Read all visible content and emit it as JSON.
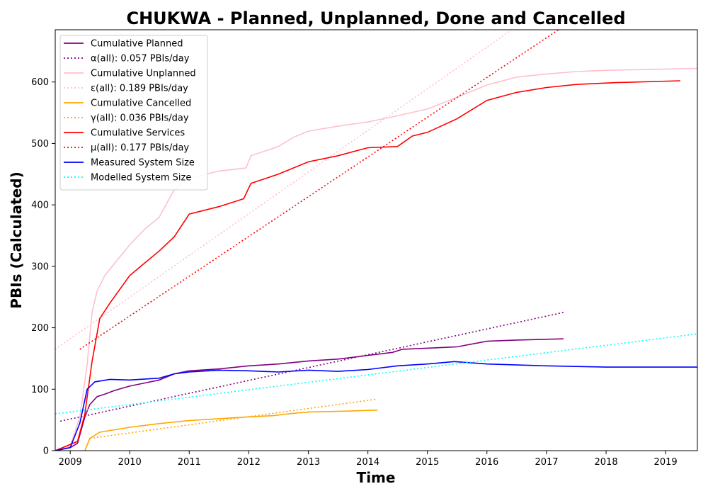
{
  "chart_data": {
    "type": "line",
    "title": "CHUKWA - Planned, Unplanned, Done  and Cancelled",
    "xlabel": "Time",
    "ylabel": "PBIs (Calculated)",
    "xlim": [
      "2008-10-01",
      "2019-07-15"
    ],
    "ylim": [
      0,
      685
    ],
    "x_ticks": [
      "2009",
      "2010",
      "2011",
      "2012",
      "2013",
      "2014",
      "2015",
      "2016",
      "2017",
      "2018",
      "2019"
    ],
    "y_ticks": [
      0,
      100,
      200,
      300,
      400,
      500,
      600
    ],
    "legend_position": "upper-left",
    "grid": false,
    "series": [
      {
        "name": "Cumulative Planned",
        "color": "#800080",
        "style": "solid",
        "points": [
          [
            "2008-10-01",
            0
          ],
          [
            "2009-01-01",
            5
          ],
          [
            "2009-02-15",
            12
          ],
          [
            "2009-04-01",
            55
          ],
          [
            "2009-05-01",
            75
          ],
          [
            "2009-06-15",
            88
          ],
          [
            "2009-08-01",
            92
          ],
          [
            "2009-10-01",
            98
          ],
          [
            "2010-01-01",
            105
          ],
          [
            "2010-04-01",
            110
          ],
          [
            "2010-07-01",
            115
          ],
          [
            "2010-10-01",
            125
          ],
          [
            "2011-01-01",
            130
          ],
          [
            "2011-07-01",
            133
          ],
          [
            "2012-01-01",
            138
          ],
          [
            "2012-07-01",
            141
          ],
          [
            "2013-01-01",
            146
          ],
          [
            "2013-07-01",
            149
          ],
          [
            "2014-01-01",
            155
          ],
          [
            "2014-06-01",
            160
          ],
          [
            "2014-08-01",
            165
          ],
          [
            "2015-07-01",
            169
          ],
          [
            "2016-01-01",
            178
          ],
          [
            "2016-07-01",
            180
          ],
          [
            "2017-04-15",
            182
          ]
        ]
      },
      {
        "name": "α(all): 0.057 PBIs/day",
        "color": "#800080",
        "style": "dotted",
        "points": [
          [
            "2008-11-01",
            48
          ],
          [
            "2017-04-15",
            225
          ]
        ]
      },
      {
        "name": "Cumulative Unplanned",
        "color": "#ffc0cb",
        "style": "solid",
        "points": [
          [
            "2008-10-01",
            0
          ],
          [
            "2009-01-01",
            8
          ],
          [
            "2009-03-01",
            55
          ],
          [
            "2009-04-15",
            140
          ],
          [
            "2009-05-15",
            225
          ],
          [
            "2009-06-15",
            260
          ],
          [
            "2009-08-01",
            285
          ],
          [
            "2009-10-01",
            305
          ],
          [
            "2010-01-01",
            335
          ],
          [
            "2010-04-01",
            360
          ],
          [
            "2010-07-01",
            380
          ],
          [
            "2010-10-01",
            425
          ],
          [
            "2011-01-01",
            443
          ],
          [
            "2011-07-01",
            455
          ],
          [
            "2011-12-15",
            460
          ],
          [
            "2012-01-15",
            480
          ],
          [
            "2012-07-01",
            495
          ],
          [
            "2012-10-01",
            510
          ],
          [
            "2013-01-01",
            520
          ],
          [
            "2013-07-01",
            528
          ],
          [
            "2014-01-01",
            535
          ],
          [
            "2014-07-01",
            545
          ],
          [
            "2015-01-01",
            556
          ],
          [
            "2015-07-01",
            575
          ],
          [
            "2016-01-01",
            595
          ],
          [
            "2016-07-01",
            608
          ],
          [
            "2017-01-01",
            613
          ],
          [
            "2017-07-01",
            617
          ],
          [
            "2018-01-01",
            619
          ],
          [
            "2019-07-15",
            622
          ]
        ]
      },
      {
        "name": "ε(all): 0.189 PBIs/day",
        "color": "#ffc0cb",
        "style": "dotted",
        "points": [
          [
            "2008-10-01",
            165
          ],
          [
            "2016-06-01",
            685
          ]
        ]
      },
      {
        "name": "Cumulative Cancelled",
        "color": "#ffa500",
        "style": "solid",
        "points": [
          [
            "2009-04-01",
            0
          ],
          [
            "2009-05-01",
            20
          ],
          [
            "2009-07-01",
            30
          ],
          [
            "2010-01-01",
            38
          ],
          [
            "2010-07-01",
            44
          ],
          [
            "2011-01-01",
            49
          ],
          [
            "2011-07-01",
            52
          ],
          [
            "2012-01-01",
            55
          ],
          [
            "2012-06-01",
            57
          ],
          [
            "2012-09-01",
            60
          ],
          [
            "2013-01-01",
            63
          ],
          [
            "2013-07-01",
            64
          ],
          [
            "2014-03-01",
            66
          ]
        ]
      },
      {
        "name": "γ(all): 0.036 PBIs/day",
        "color": "#ffa500",
        "style": "dotted",
        "points": [
          [
            "2009-05-01",
            20
          ],
          [
            "2014-03-01",
            84
          ]
        ]
      },
      {
        "name": "Cumulative Services",
        "color": "#ff0000",
        "style": "solid",
        "points": [
          [
            "2008-10-01",
            0
          ],
          [
            "2009-02-15",
            15
          ],
          [
            "2009-04-01",
            60
          ],
          [
            "2009-05-15",
            145
          ],
          [
            "2009-07-01",
            215
          ],
          [
            "2009-09-01",
            240
          ],
          [
            "2010-01-01",
            285
          ],
          [
            "2010-04-01",
            305
          ],
          [
            "2010-07-01",
            325
          ],
          [
            "2010-10-01",
            348
          ],
          [
            "2011-01-01",
            385
          ],
          [
            "2011-07-01",
            397
          ],
          [
            "2011-12-01",
            410
          ],
          [
            "2012-01-15",
            435
          ],
          [
            "2012-07-01",
            450
          ],
          [
            "2013-01-01",
            470
          ],
          [
            "2013-07-01",
            480
          ],
          [
            "2014-01-01",
            493
          ],
          [
            "2014-07-01",
            495
          ],
          [
            "2014-10-01",
            512
          ],
          [
            "2015-01-01",
            518
          ],
          [
            "2015-07-01",
            540
          ],
          [
            "2016-01-01",
            570
          ],
          [
            "2016-07-01",
            583
          ],
          [
            "2017-01-01",
            591
          ],
          [
            "2017-07-01",
            596
          ],
          [
            "2018-03-01",
            599
          ],
          [
            "2019-04-01",
            602
          ]
        ]
      },
      {
        "name": "μ(all): 0.177 PBIs/day",
        "color": "#ff0000",
        "style": "dotted",
        "points": [
          [
            "2009-03-01",
            165
          ],
          [
            "2017-03-15",
            685
          ]
        ]
      },
      {
        "name": "Measured System Size",
        "color": "#0000ff",
        "style": "solid",
        "points": [
          [
            "2008-10-01",
            0
          ],
          [
            "2009-01-01",
            5
          ],
          [
            "2009-03-01",
            45
          ],
          [
            "2009-04-15",
            100
          ],
          [
            "2009-06-01",
            112
          ],
          [
            "2009-09-01",
            116
          ],
          [
            "2010-01-01",
            115
          ],
          [
            "2010-07-01",
            118
          ],
          [
            "2010-10-01",
            125
          ],
          [
            "2011-01-01",
            128
          ],
          [
            "2011-07-01",
            131
          ],
          [
            "2012-01-01",
            130
          ],
          [
            "2012-07-01",
            128
          ],
          [
            "2013-01-01",
            131
          ],
          [
            "2013-07-01",
            129
          ],
          [
            "2014-01-01",
            132
          ],
          [
            "2014-07-01",
            138
          ],
          [
            "2015-01-01",
            141
          ],
          [
            "2015-06-15",
            145
          ],
          [
            "2016-01-01",
            141
          ],
          [
            "2017-01-01",
            138
          ],
          [
            "2018-01-01",
            136
          ],
          [
            "2019-07-15",
            136
          ]
        ]
      },
      {
        "name": "Modelled System Size",
        "color": "#00ffff",
        "style": "dotted",
        "points": [
          [
            "2008-10-01",
            60
          ],
          [
            "2019-07-15",
            190
          ]
        ]
      }
    ]
  }
}
